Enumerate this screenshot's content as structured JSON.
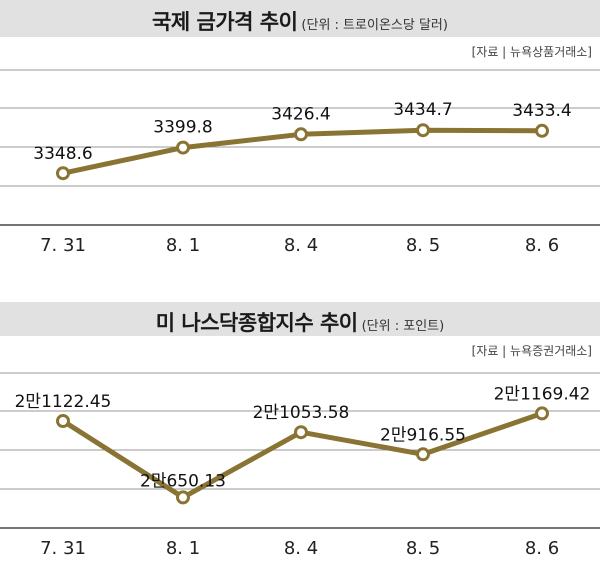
{
  "chart_data": [
    {
      "type": "line",
      "title": "국제 금가격 추이",
      "unit": "(단위 : 트로이온스당 달러)",
      "source": "[자료 | 뉴욕상품거래소]",
      "categories": [
        "7. 31",
        "8. 1",
        "8. 4",
        "8. 5",
        "8. 6"
      ],
      "values": [
        3348.6,
        3399.8,
        3426.4,
        3434.7,
        3433.4
      ],
      "labels": [
        "3348.6",
        "3399.8",
        "3426.4",
        "3434.7",
        "3433.4"
      ],
      "grid": true,
      "line_color": "#8a7433"
    },
    {
      "type": "line",
      "title": "미 나스닥종합지수 추이",
      "unit": "(단위 : 포인트)",
      "source": "[자료 | 뉴욕증권거래소]",
      "categories": [
        "7. 31",
        "8. 1",
        "8. 4",
        "8. 5",
        "8. 6"
      ],
      "values": [
        21122.45,
        20650.13,
        21053.58,
        20916.55,
        21169.42
      ],
      "labels": [
        "2만1122.45",
        "2만650.13",
        "2만1053.58",
        "2만916.55",
        "2만1169.42"
      ],
      "grid": true,
      "line_color": "#8a7433"
    }
  ]
}
